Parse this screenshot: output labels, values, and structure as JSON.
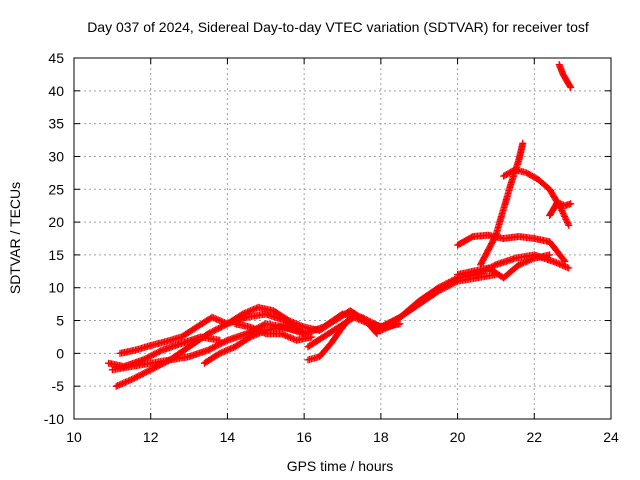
{
  "chart_data": {
    "type": "scatter",
    "title": "Day 037 of 2024, Sidereal Day-to-day VTEC variation (SDTVAR) for receiver tosf",
    "xlabel": "GPS time / hours",
    "ylabel": "SDTVAR / TECUs",
    "xlim": [
      10,
      24
    ],
    "ylim": [
      -10,
      45
    ],
    "xticks": [
      10,
      12,
      14,
      16,
      18,
      20,
      22,
      24
    ],
    "yticks": [
      -10,
      -5,
      0,
      5,
      10,
      15,
      20,
      25,
      30,
      35,
      40,
      45
    ],
    "xtick_labels": [
      "10",
      "12",
      "14",
      "16",
      "18",
      "20",
      "22",
      "24"
    ],
    "ytick_labels": [
      "-10",
      "-5",
      "0",
      "5",
      "10",
      "15",
      "20",
      "25",
      "30",
      "35",
      "40",
      "45"
    ],
    "grid": true,
    "marker": "plus",
    "color": "#ff0000",
    "series": [
      {
        "name": "s1",
        "x": [
          11.0,
          11.5,
          12.0,
          12.5,
          13.0,
          13.5,
          14.0,
          14.5,
          15.0,
          15.5,
          16.0,
          16.5,
          17.0,
          17.5,
          18.0,
          18.5,
          19.0,
          19.5,
          20.0,
          20.5,
          21.0,
          21.5,
          22.0,
          22.5,
          22.9
        ],
        "y": [
          -2.5,
          -2.0,
          -1.5,
          -1.0,
          -0.5,
          0.5,
          2.0,
          3.0,
          4.5,
          4.0,
          3.0,
          4.0,
          6.0,
          5.5,
          4.0,
          5.5,
          8.0,
          10.0,
          11.5,
          12.0,
          13.5,
          14.5,
          15.0,
          14.0,
          13.0
        ]
      },
      {
        "name": "s2",
        "x": [
          11.2,
          11.6,
          12.0,
          12.4,
          12.8,
          13.2,
          13.6,
          14.0,
          14.4,
          14.8,
          15.2,
          15.6,
          16.0,
          16.4,
          16.8,
          17.2,
          17.6,
          18.0,
          18.4
        ],
        "y": [
          0.0,
          0.5,
          1.2,
          1.8,
          2.5,
          4.0,
          5.5,
          4.5,
          6.0,
          7.0,
          6.5,
          5.0,
          4.0,
          3.5,
          5.0,
          6.5,
          5.0,
          3.5,
          4.5
        ]
      },
      {
        "name": "s3",
        "x": [
          11.1,
          11.5,
          12.0,
          12.5,
          13.0,
          13.5,
          14.0,
          14.5,
          15.0,
          15.5,
          16.0
        ],
        "y": [
          -5.0,
          -4.0,
          -2.5,
          -1.0,
          1.0,
          3.0,
          4.5,
          5.5,
          6.0,
          5.0,
          3.0
        ]
      },
      {
        "name": "s4",
        "x": [
          10.9,
          11.3,
          11.8,
          12.3,
          12.8,
          13.3,
          13.8
        ],
        "y": [
          -1.5,
          -2.0,
          -1.0,
          0.5,
          1.5,
          2.5,
          2.0
        ]
      },
      {
        "name": "s5",
        "x": [
          13.4,
          13.8,
          14.2,
          14.6,
          15.0,
          15.4,
          15.8
        ],
        "y": [
          -1.5,
          0.0,
          1.0,
          2.5,
          3.5,
          4.0,
          3.5
        ]
      },
      {
        "name": "s6",
        "x": [
          14.2,
          14.6,
          15.0,
          15.4,
          15.8,
          16.2
        ],
        "y": [
          4.5,
          4.0,
          3.0,
          3.0,
          2.0,
          2.5
        ]
      },
      {
        "name": "s7",
        "x": [
          16.1,
          16.4,
          16.7,
          17.0,
          17.3,
          17.6,
          17.9
        ],
        "y": [
          -1.0,
          -0.5,
          1.5,
          4.0,
          6.0,
          5.0,
          3.0
        ]
      },
      {
        "name": "s8",
        "x": [
          16.1,
          16.5,
          16.9,
          17.3,
          17.7,
          18.1,
          18.5
        ],
        "y": [
          1.0,
          2.5,
          4.0,
          5.5,
          4.5,
          4.0,
          4.5
        ]
      },
      {
        "name": "s9",
        "x": [
          18.0,
          18.5,
          19.0,
          19.5,
          20.0,
          20.5,
          21.0
        ],
        "y": [
          4.0,
          5.5,
          7.5,
          9.5,
          11.0,
          11.5,
          12.0
        ]
      },
      {
        "name": "s10",
        "x": [
          20.0,
          20.4,
          20.8,
          21.2,
          21.6,
          22.0,
          22.4,
          22.8
        ],
        "y": [
          16.5,
          17.8,
          18.0,
          17.5,
          17.8,
          17.5,
          17.0,
          14.0
        ]
      },
      {
        "name": "s11",
        "x": [
          20.6,
          21.0,
          21.2,
          21.4,
          21.6,
          21.7
        ],
        "y": [
          13.5,
          18.0,
          22.0,
          26.0,
          29.5,
          32.0
        ]
      },
      {
        "name": "s12",
        "x": [
          21.2,
          21.5,
          21.8,
          22.1,
          22.4,
          22.7,
          22.9
        ],
        "y": [
          27.0,
          28.0,
          27.5,
          26.5,
          25.0,
          22.0,
          19.5
        ]
      },
      {
        "name": "s13",
        "x": [
          22.4,
          22.6,
          22.8,
          22.95
        ],
        "y": [
          21.0,
          23.0,
          22.5,
          22.8
        ]
      },
      {
        "name": "s14",
        "x": [
          22.65,
          22.75,
          22.85,
          22.95
        ],
        "y": [
          44.0,
          42.5,
          41.5,
          40.5
        ]
      },
      {
        "name": "s15",
        "x": [
          20.0,
          20.4,
          20.8,
          21.2,
          21.6,
          22.0,
          22.4
        ],
        "y": [
          12.0,
          12.5,
          13.0,
          11.5,
          13.5,
          14.5,
          15.0
        ]
      }
    ]
  }
}
